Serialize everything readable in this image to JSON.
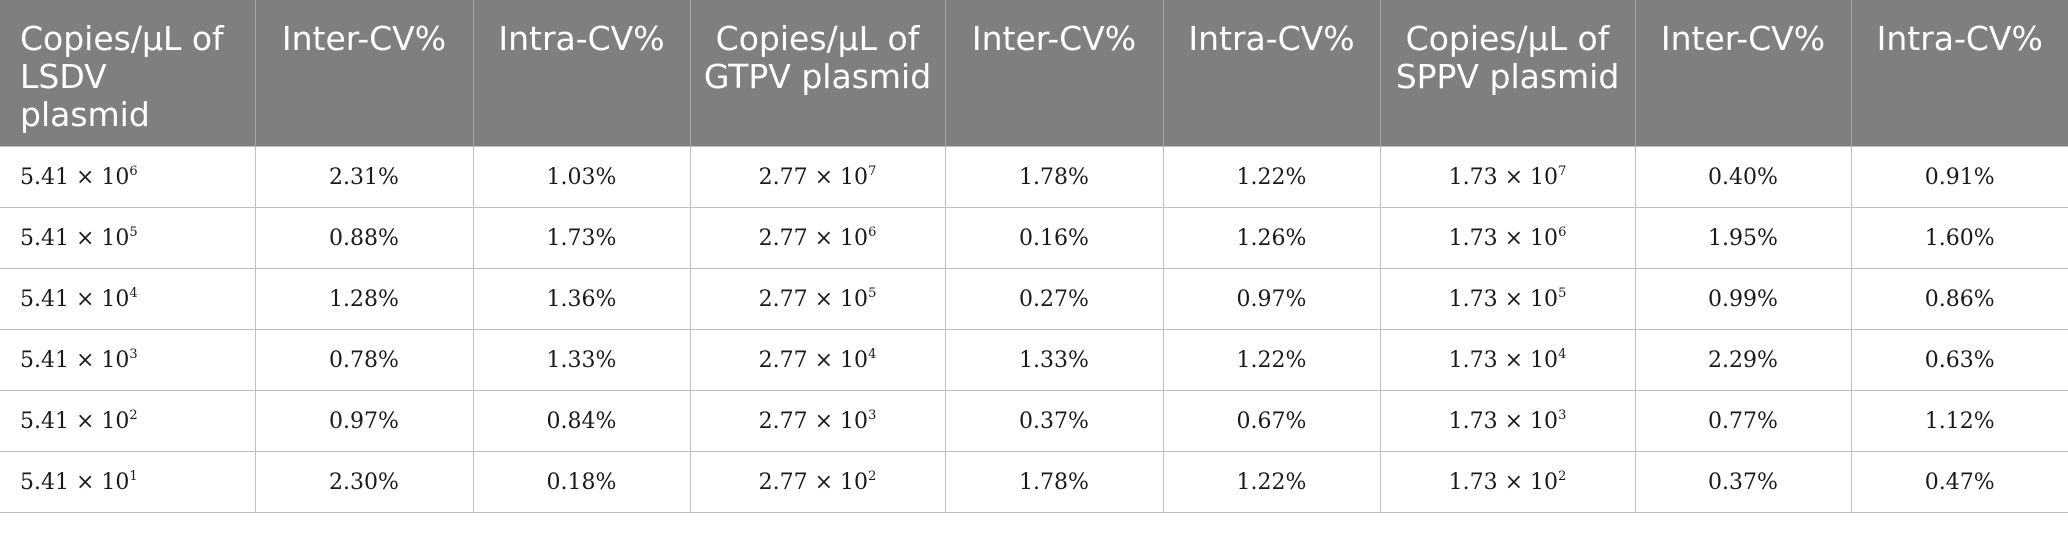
{
  "table": {
    "headers": [
      "Copies/μL of LSDV plasmid",
      "Inter-CV%",
      "Intra-CV%",
      "Copies/μL of GTPV plasmid",
      "Inter-CV%",
      "Intra-CV%",
      "Copies/μL of SPPV plasmid",
      "Inter-CV%",
      "Intra-CV%"
    ],
    "rows": [
      {
        "lsdv_base": "5.41 × 10",
        "lsdv_exp": "6",
        "lsdv_inter": "2.31%",
        "lsdv_intra": "1.03%",
        "gtpv_base": "2.77 × 10",
        "gtpv_exp": "7",
        "gtpv_inter": "1.78%",
        "gtpv_intra": "1.22%",
        "sppv_base": "1.73 × 10",
        "sppv_exp": "7",
        "sppv_inter": "0.40%",
        "sppv_intra": "0.91%"
      },
      {
        "lsdv_base": "5.41 × 10",
        "lsdv_exp": "5",
        "lsdv_inter": "0.88%",
        "lsdv_intra": "1.73%",
        "gtpv_base": "2.77 × 10",
        "gtpv_exp": "6",
        "gtpv_inter": "0.16%",
        "gtpv_intra": "1.26%",
        "sppv_base": "1.73 × 10",
        "sppv_exp": "6",
        "sppv_inter": "1.95%",
        "sppv_intra": "1.60%"
      },
      {
        "lsdv_base": "5.41 × 10",
        "lsdv_exp": "4",
        "lsdv_inter": "1.28%",
        "lsdv_intra": "1.36%",
        "gtpv_base": "2.77 × 10",
        "gtpv_exp": "5",
        "gtpv_inter": "0.27%",
        "gtpv_intra": "0.97%",
        "sppv_base": "1.73 × 10",
        "sppv_exp": "5",
        "sppv_inter": "0.99%",
        "sppv_intra": "0.86%"
      },
      {
        "lsdv_base": "5.41 × 10",
        "lsdv_exp": "3",
        "lsdv_inter": "0.78%",
        "lsdv_intra": "1.33%",
        "gtpv_base": "2.77 × 10",
        "gtpv_exp": "4",
        "gtpv_inter": "1.33%",
        "gtpv_intra": "1.22%",
        "sppv_base": "1.73 × 10",
        "sppv_exp": "4",
        "sppv_inter": "2.29%",
        "sppv_intra": "0.63%"
      },
      {
        "lsdv_base": "5.41 × 10",
        "lsdv_exp": "2",
        "lsdv_inter": "0.97%",
        "lsdv_intra": "0.84%",
        "gtpv_base": "2.77 × 10",
        "gtpv_exp": "3",
        "gtpv_inter": "0.37%",
        "gtpv_intra": "0.67%",
        "sppv_base": "1.73 × 10",
        "sppv_exp": "3",
        "sppv_inter": "0.77%",
        "sppv_intra": "1.12%"
      },
      {
        "lsdv_base": "5.41 × 10",
        "lsdv_exp": "1",
        "lsdv_inter": "2.30%",
        "lsdv_intra": "0.18%",
        "gtpv_base": "2.77 × 10",
        "gtpv_exp": "2",
        "gtpv_inter": "1.78%",
        "gtpv_intra": "1.22%",
        "sppv_base": "1.73 × 10",
        "sppv_exp": "2",
        "sppv_inter": "0.37%",
        "sppv_intra": "0.47%"
      }
    ],
    "colors": {
      "header_bg": "#7f7f7f",
      "header_text": "#ffffff",
      "grid_line": "#bfbfbf"
    }
  }
}
